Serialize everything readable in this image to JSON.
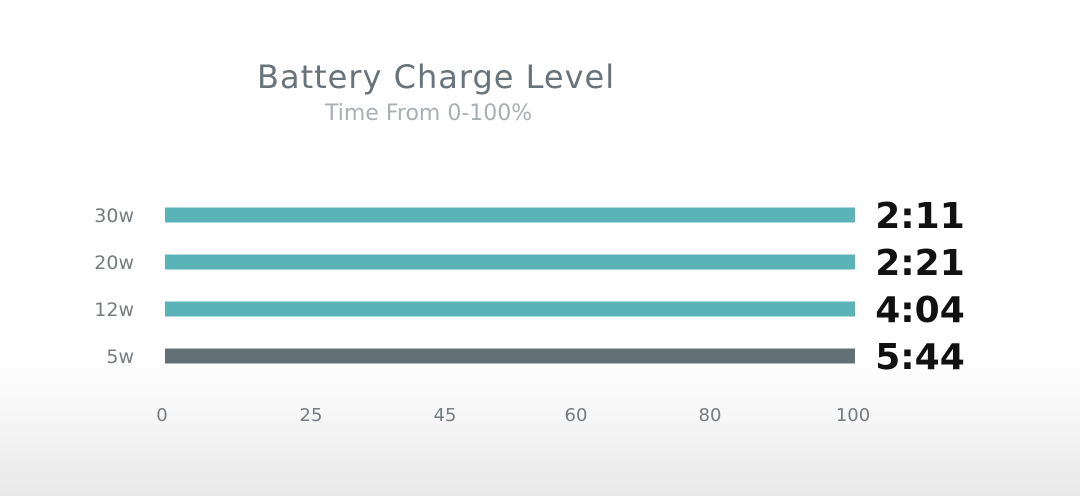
{
  "chart_data": {
    "type": "bar",
    "orientation": "horizontal",
    "title": "Battery Charge Level",
    "subtitle": "Time From 0-100%",
    "categories": [
      "30w",
      "20w",
      "12w",
      "5w"
    ],
    "values": [
      100,
      100,
      100,
      100
    ],
    "data_labels": [
      "2:11",
      "2:21",
      "4:04",
      "5:44"
    ],
    "x_ticks": [
      "0",
      "25",
      "45",
      "60",
      "80",
      "100"
    ],
    "xlim": [
      0,
      100
    ],
    "grid": false,
    "colors": [
      "#5ab3b6",
      "#5ab3b6",
      "#5ab3b6",
      "#637075"
    ]
  }
}
